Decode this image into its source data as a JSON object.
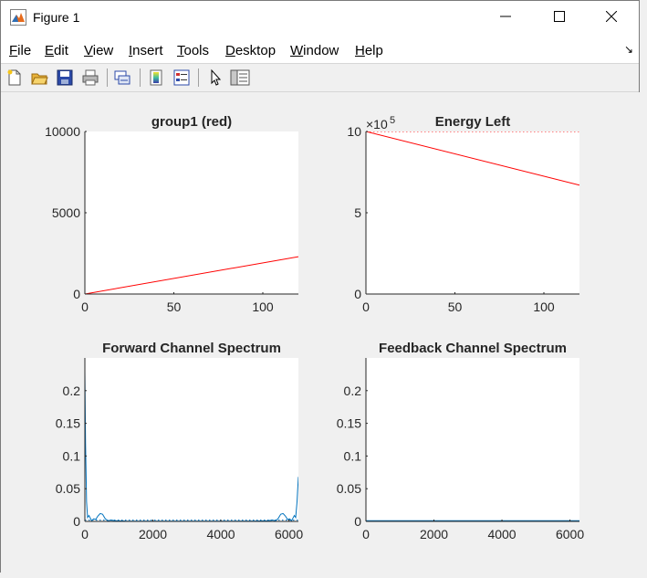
{
  "window": {
    "title": "Figure 1"
  },
  "window_controls": {
    "minimize": "minimize-icon",
    "maximize": "maximize-icon",
    "close": "close-icon"
  },
  "menu": {
    "items": [
      {
        "key": "F",
        "rest": "ile"
      },
      {
        "key": "E",
        "rest": "dit"
      },
      {
        "key": "V",
        "rest": "iew"
      },
      {
        "key": "I",
        "rest": "nsert"
      },
      {
        "key": "T",
        "rest": "ools"
      },
      {
        "key": "D",
        "rest": "esktop"
      },
      {
        "key": "W",
        "rest": "indow"
      },
      {
        "key": "H",
        "rest": "elp"
      }
    ],
    "dock_glyph": "↘"
  },
  "toolbar": {
    "icons": [
      "new-figure-icon",
      "open-file-icon",
      "save-icon",
      "print-icon",
      "link-plot-icon",
      "insert-colorbar-icon",
      "insert-legend-icon",
      "edit-plot-arrow-icon",
      "property-inspector-icon"
    ]
  },
  "colors": {
    "red_line": "#ff0000",
    "blue_line": "#0072bd"
  },
  "chart_data": [
    {
      "type": "line",
      "title": "group1 (red)",
      "xlim": [
        0,
        120
      ],
      "ylim": [
        0,
        10000
      ],
      "xticks": [
        "0",
        "50",
        "100"
      ],
      "yticks": [
        "0",
        "5000",
        "10000"
      ],
      "series": [
        {
          "color": "#ff0000",
          "x": [
            0,
            120
          ],
          "y": [
            0,
            2300
          ]
        }
      ]
    },
    {
      "type": "line",
      "title": "Energy Left",
      "exponent_label": "×10",
      "exponent_power": "5",
      "xlim": [
        0,
        120
      ],
      "ylim": [
        0,
        10
      ],
      "xticks": [
        "0",
        "50",
        "100"
      ],
      "yticks": [
        "0",
        "5",
        "10"
      ],
      "series": [
        {
          "color": "#ff0000",
          "style": "solid",
          "x": [
            0,
            120
          ],
          "y": [
            10,
            6.7
          ]
        },
        {
          "color": "#ff0000",
          "style": "dotted",
          "x": [
            0,
            120
          ],
          "y": [
            10,
            10
          ]
        }
      ]
    },
    {
      "type": "line",
      "title": "Forward Channel Spectrum",
      "xlim": [
        0,
        6280
      ],
      "ylim": [
        0,
        0.25
      ],
      "xticks": [
        "0",
        "2000",
        "4000",
        "6000"
      ],
      "yticks": [
        "0",
        "0.05",
        "0.1",
        "0.15",
        "0.2"
      ],
      "series": [
        {
          "color": "#0072bd",
          "x": [
            0,
            20,
            50,
            80,
            120,
            160,
            200,
            260,
            320,
            380,
            450,
            520,
            600,
            680,
            760,
            900,
            1200,
            2000,
            3000,
            4000,
            5000,
            5400,
            5520,
            5600,
            5680,
            5760,
            5830,
            5900,
            5960,
            6020,
            6080,
            6120,
            6160,
            6200,
            6240,
            6260,
            6280
          ],
          "y": [
            0.23,
            0.12,
            0.03,
            0.006,
            0.009,
            0.005,
            0.001,
            0.004,
            0.003,
            0.008,
            0.012,
            0.011,
            0.004,
            0.0008,
            0.002,
            0.001,
            0.0005,
            0.0003,
            0.0003,
            0.0003,
            0.0005,
            0.001,
            0.002,
            0.0008,
            0.004,
            0.011,
            0.012,
            0.008,
            0.003,
            0.004,
            0.001,
            0.005,
            0.009,
            0.006,
            0.03,
            0.05,
            0.068
          ]
        },
        {
          "color": "#0072bd",
          "style": "dotted",
          "x": [
            0,
            6280
          ],
          "y": [
            0.002,
            0.002
          ]
        }
      ]
    },
    {
      "type": "line",
      "title": "Feedback Channel Spectrum",
      "xlim": [
        0,
        6280
      ],
      "ylim": [
        0,
        0.25
      ],
      "xticks": [
        "0",
        "2000",
        "4000",
        "6000"
      ],
      "yticks": [
        "0",
        "0.05",
        "0.1",
        "0.15",
        "0.2"
      ],
      "series": [
        {
          "color": "#0072bd",
          "x": [
            0,
            6280
          ],
          "y": [
            0.001,
            0.001
          ]
        }
      ]
    }
  ]
}
